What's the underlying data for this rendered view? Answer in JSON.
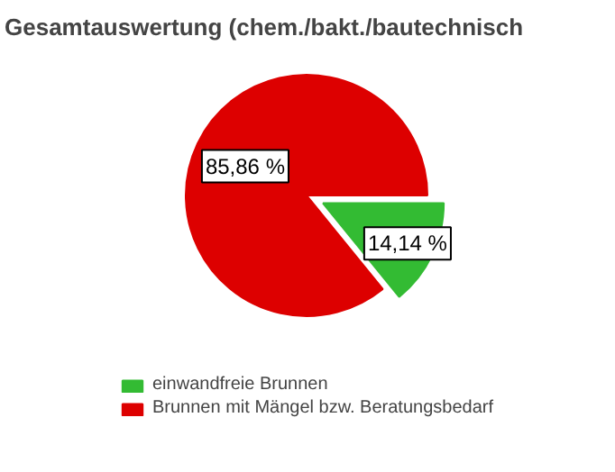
{
  "chart_data": {
    "type": "pie",
    "title": "Gesamtauswertung (chem./bakt./bautechnisch",
    "categories": [
      "einwandfreie Brunnen",
      "Brunnen mit Mängel bzw. Beratungsbedarf"
    ],
    "values": [
      14.14,
      85.86
    ],
    "colors": [
      "#33bb33",
      "#dd0000"
    ],
    "value_labels": [
      "14,14 %",
      "85,86 %"
    ],
    "legend": "bottom"
  }
}
